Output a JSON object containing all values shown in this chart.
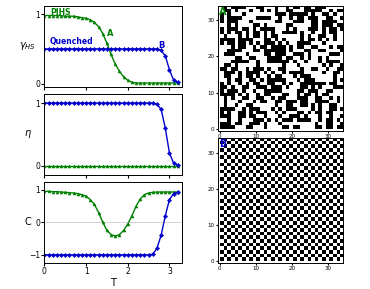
{
  "fig_width": 3.7,
  "fig_height": 2.89,
  "bg_color": "#ffffff",
  "green_color": "#008000",
  "blue_color": "#0000cd",
  "pihs_T": [
    0.0,
    0.1,
    0.2,
    0.3,
    0.4,
    0.5,
    0.6,
    0.7,
    0.8,
    0.9,
    1.0,
    1.1,
    1.2,
    1.3,
    1.4,
    1.5,
    1.6,
    1.7,
    1.8,
    1.9,
    2.0,
    2.1,
    2.2,
    2.3,
    2.4,
    2.5,
    2.6,
    2.7,
    2.8,
    2.9,
    3.0,
    3.1,
    3.2
  ],
  "pihs_gHS": [
    0.98,
    0.98,
    0.98,
    0.98,
    0.98,
    0.97,
    0.97,
    0.97,
    0.96,
    0.95,
    0.94,
    0.92,
    0.88,
    0.82,
    0.72,
    0.58,
    0.42,
    0.28,
    0.18,
    0.1,
    0.05,
    0.02,
    0.01,
    0.01,
    0.01,
    0.01,
    0.01,
    0.01,
    0.01,
    0.01,
    0.01,
    0.01,
    0.01
  ],
  "quench_T": [
    0.0,
    0.1,
    0.2,
    0.3,
    0.4,
    0.5,
    0.6,
    0.7,
    0.8,
    0.9,
    1.0,
    1.1,
    1.2,
    1.3,
    1.4,
    1.5,
    1.6,
    1.7,
    1.8,
    1.9,
    2.0,
    2.1,
    2.2,
    2.3,
    2.4,
    2.5,
    2.6,
    2.7,
    2.8,
    2.9,
    3.0,
    3.1,
    3.2
  ],
  "quench_gHS": [
    0.5,
    0.5,
    0.5,
    0.5,
    0.5,
    0.5,
    0.5,
    0.5,
    0.5,
    0.5,
    0.5,
    0.5,
    0.5,
    0.5,
    0.5,
    0.5,
    0.5,
    0.5,
    0.5,
    0.5,
    0.5,
    0.5,
    0.5,
    0.5,
    0.5,
    0.5,
    0.5,
    0.5,
    0.48,
    0.4,
    0.2,
    0.05,
    0.02
  ],
  "pihs_eta": [
    0.0,
    0.0,
    0.0,
    0.0,
    0.0,
    0.0,
    0.0,
    0.0,
    0.0,
    0.0,
    0.0,
    0.0,
    0.0,
    0.0,
    0.0,
    0.0,
    0.0,
    0.0,
    0.0,
    0.0,
    0.0,
    0.0,
    0.0,
    0.0,
    0.0,
    0.0,
    0.0,
    0.0,
    0.0,
    0.0,
    0.0,
    0.0,
    0.0
  ],
  "quench_eta": [
    1.0,
    1.0,
    1.0,
    1.0,
    1.0,
    1.0,
    1.0,
    1.0,
    1.0,
    1.0,
    1.0,
    1.0,
    1.0,
    1.0,
    1.0,
    1.0,
    1.0,
    1.0,
    1.0,
    1.0,
    1.0,
    1.0,
    1.0,
    1.0,
    1.0,
    1.0,
    1.0,
    0.98,
    0.9,
    0.6,
    0.2,
    0.04,
    0.01
  ],
  "pihs_C": [
    0.95,
    0.95,
    0.94,
    0.94,
    0.93,
    0.92,
    0.91,
    0.9,
    0.88,
    0.85,
    0.8,
    0.7,
    0.55,
    0.3,
    0.0,
    -0.25,
    -0.38,
    -0.42,
    -0.38,
    -0.25,
    -0.05,
    0.2,
    0.5,
    0.72,
    0.85,
    0.9,
    0.92,
    0.93,
    0.93,
    0.93,
    0.93,
    0.93,
    0.93
  ],
  "quench_C": [
    -1.0,
    -1.0,
    -1.0,
    -1.0,
    -1.0,
    -1.0,
    -1.0,
    -1.0,
    -1.0,
    -1.0,
    -1.0,
    -1.0,
    -1.0,
    -1.0,
    -1.0,
    -1.0,
    -1.0,
    -1.0,
    -1.0,
    -1.0,
    -1.0,
    -1.0,
    -1.0,
    -1.0,
    -1.0,
    -1.0,
    -0.98,
    -0.8,
    -0.4,
    0.2,
    0.7,
    0.88,
    0.92
  ],
  "T_label": "T",
  "ylabel1": "$\\gamma_{HS}$",
  "ylabel2": "$\\eta$",
  "ylabel3": "C",
  "label_pihs": "PIHS",
  "label_quench": "Quenched",
  "annot_A": "A",
  "annot_B": "B",
  "grid_A_title": "A",
  "grid_B_title": "B",
  "grid_size": 34
}
